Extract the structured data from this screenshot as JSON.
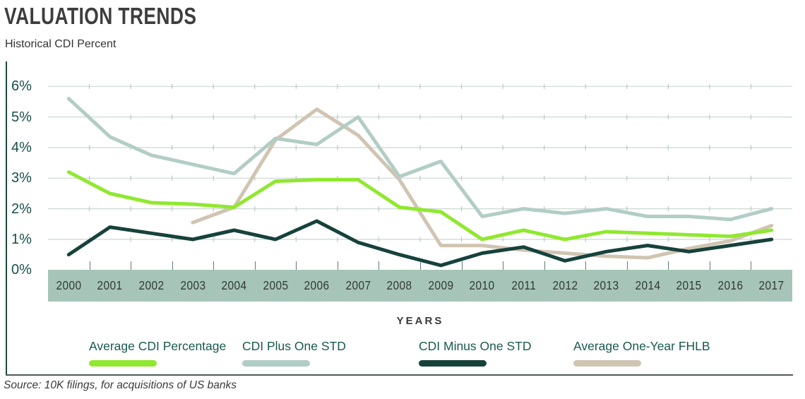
{
  "header": {
    "title": "VALUATION TRENDS",
    "subtitle": "Historical CDI Percent"
  },
  "chart_data": {
    "type": "line",
    "title": "VALUATION TRENDS",
    "subtitle": "Historical CDI Percent",
    "x": [
      2000,
      2001,
      2002,
      2003,
      2004,
      2005,
      2006,
      2007,
      2008,
      2009,
      2010,
      2011,
      2012,
      2013,
      2014,
      2015,
      2016,
      2017
    ],
    "xlabel": "YEARS",
    "ylabel": "",
    "ylim": [
      0,
      6
    ],
    "yticks": [
      "0%",
      "1%",
      "2%",
      "3%",
      "4%",
      "5%",
      "6%"
    ],
    "grid": true,
    "legend_position": "bottom",
    "series": [
      {
        "name": "Average CDI Percentage",
        "color": "#90e82f",
        "values": [
          3.2,
          2.5,
          2.2,
          2.15,
          2.05,
          2.9,
          2.95,
          2.95,
          2.05,
          1.9,
          1.0,
          1.3,
          1.0,
          1.25,
          1.2,
          1.15,
          1.1,
          1.3
        ]
      },
      {
        "name": "CDI Plus One STD",
        "color": "#b2cdc6",
        "values": [
          5.6,
          4.35,
          3.75,
          3.45,
          3.15,
          4.3,
          4.1,
          5.0,
          3.05,
          3.55,
          1.75,
          2.0,
          1.85,
          2.0,
          1.75,
          1.75,
          1.65,
          2.0
        ]
      },
      {
        "name": "CDI Minus One STD",
        "color": "#16423b",
        "values": [
          0.5,
          1.4,
          1.2,
          1.0,
          1.3,
          1.0,
          1.6,
          0.9,
          0.5,
          0.15,
          0.55,
          0.75,
          0.3,
          0.6,
          0.8,
          0.6,
          0.8,
          1.0
        ]
      },
      {
        "name": "Average One-Year FHLB",
        "color": "#d0c4b2",
        "values": [
          null,
          null,
          null,
          1.55,
          2.05,
          4.25,
          5.25,
          4.4,
          2.95,
          0.8,
          0.8,
          0.65,
          0.55,
          0.45,
          0.4,
          0.7,
          0.95,
          1.45
        ]
      }
    ]
  },
  "colors": {
    "band": "#a6c5b8",
    "grid": "#ccd8d2",
    "grid_tick": "#b6c9c2",
    "band_tick": "#5e7d73",
    "axis_line": "#1c4641",
    "y_label": "#175049",
    "legend_text": "#18594e"
  },
  "footer": {
    "source": "Source: 10K filings, for acquisitions of US banks"
  }
}
